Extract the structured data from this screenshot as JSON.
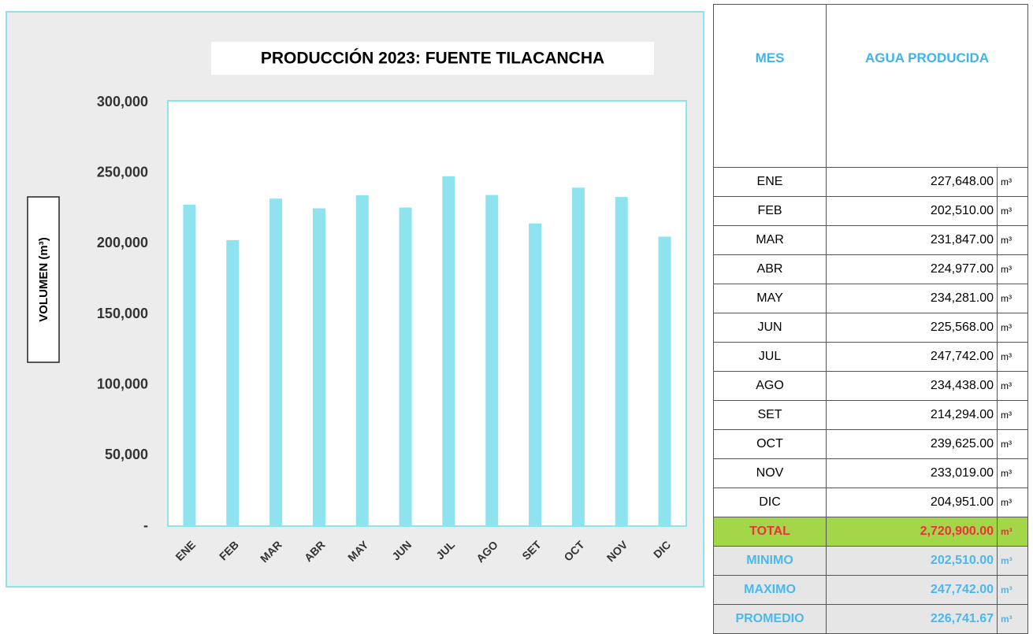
{
  "chart_data": {
    "type": "bar",
    "title": "PRODUCCIÓN 2023: FUENTE TILACANCHA",
    "y_label": "VOLUMEN (m³)",
    "categories": [
      "ENE",
      "FEB",
      "MAR",
      "ABR",
      "MAY",
      "JUN",
      "JUL",
      "AGO",
      "SET",
      "OCT",
      "NOV",
      "DIC"
    ],
    "values": [
      227648,
      202510,
      231847,
      224977,
      234281,
      225568,
      247742,
      234438,
      214294,
      239625,
      233019,
      204951
    ],
    "color": "#8fe3ee",
    "ylim": [
      0,
      300000
    ],
    "yticks": [
      {
        "value": 0,
        "label": "-"
      },
      {
        "value": 50000,
        "label": "50,000"
      },
      {
        "value": 100000,
        "label": "100,000"
      },
      {
        "value": 150000,
        "label": "150,000"
      },
      {
        "value": 200000,
        "label": "200,000"
      },
      {
        "value": 250000,
        "label": "250,000"
      },
      {
        "value": 300000,
        "label": "300,000"
      }
    ],
    "grid": false
  },
  "table": {
    "header": [
      "MES",
      "AGUA PRODUCIDA"
    ],
    "rows": [
      [
        "ENE",
        "227,648.00",
        "m³"
      ],
      [
        "FEB",
        "202,510.00",
        "m³"
      ],
      [
        "MAR",
        "231,847.00",
        "m³"
      ],
      [
        "ABR",
        "224,977.00",
        "m³"
      ],
      [
        "MAY",
        "234,281.00",
        "m³"
      ],
      [
        "JUN",
        "225,568.00",
        "m³"
      ],
      [
        "JUL",
        "247,742.00",
        "m³"
      ],
      [
        "AGO",
        "234,438.00",
        "m³"
      ],
      [
        "SET",
        "214,294.00",
        "m³"
      ],
      [
        "OCT",
        "239,625.00",
        "m³"
      ],
      [
        "NOV",
        "233,019.00",
        "m³"
      ],
      [
        "DIC",
        "204,951.00",
        "m³"
      ]
    ],
    "total": [
      "TOTAL",
      "2,720,900.00",
      "m³"
    ],
    "summary": [
      [
        "MINIMO",
        "202,510.00",
        "m³"
      ],
      [
        "MAXIMO",
        "247,742.00",
        "m³"
      ],
      [
        "PROMEDIO",
        "226,741.67",
        "m³"
      ]
    ]
  }
}
